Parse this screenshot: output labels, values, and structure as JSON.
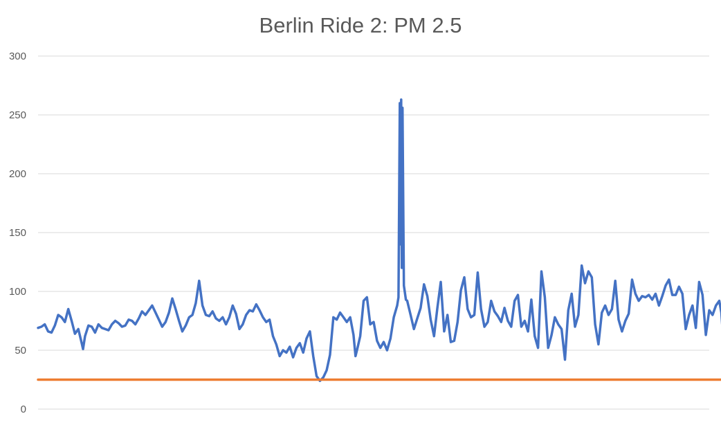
{
  "chart_data": {
    "type": "line",
    "title": "Berlin Ride 2: PM 2.5",
    "xlabel": "",
    "ylabel": "",
    "ylim": [
      0,
      300
    ],
    "y_ticks": [
      0,
      50,
      100,
      150,
      200,
      250,
      300
    ],
    "grid": true,
    "legend": "none",
    "x_count": 1000,
    "series": [
      {
        "color": "#4472c4",
        "keypoints": [
          [
            0,
            69
          ],
          [
            5,
            70
          ],
          [
            10,
            72
          ],
          [
            15,
            66
          ],
          [
            20,
            65
          ],
          [
            25,
            71
          ],
          [
            30,
            80
          ],
          [
            35,
            78
          ],
          [
            40,
            74
          ],
          [
            45,
            85
          ],
          [
            50,
            75
          ],
          [
            55,
            64
          ],
          [
            60,
            68
          ],
          [
            65,
            56
          ],
          [
            67,
            51
          ],
          [
            70,
            62
          ],
          [
            75,
            71
          ],
          [
            80,
            70
          ],
          [
            85,
            65
          ],
          [
            90,
            72
          ],
          [
            95,
            69
          ],
          [
            100,
            68
          ],
          [
            105,
            67
          ],
          [
            110,
            72
          ],
          [
            115,
            75
          ],
          [
            120,
            73
          ],
          [
            125,
            70
          ],
          [
            130,
            71
          ],
          [
            135,
            76
          ],
          [
            140,
            75
          ],
          [
            145,
            72
          ],
          [
            150,
            77
          ],
          [
            155,
            83
          ],
          [
            160,
            80
          ],
          [
            165,
            84
          ],
          [
            170,
            88
          ],
          [
            175,
            82
          ],
          [
            180,
            76
          ],
          [
            185,
            70
          ],
          [
            190,
            74
          ],
          [
            195,
            82
          ],
          [
            200,
            94
          ],
          [
            205,
            85
          ],
          [
            210,
            75
          ],
          [
            215,
            66
          ],
          [
            220,
            71
          ],
          [
            225,
            78
          ],
          [
            230,
            80
          ],
          [
            235,
            90
          ],
          [
            240,
            109
          ],
          [
            245,
            88
          ],
          [
            250,
            80
          ],
          [
            255,
            79
          ],
          [
            260,
            83
          ],
          [
            265,
            77
          ],
          [
            270,
            75
          ],
          [
            275,
            78
          ],
          [
            280,
            72
          ],
          [
            285,
            78
          ],
          [
            290,
            88
          ],
          [
            295,
            81
          ],
          [
            300,
            68
          ],
          [
            305,
            72
          ],
          [
            310,
            80
          ],
          [
            315,
            84
          ],
          [
            320,
            83
          ],
          [
            325,
            89
          ],
          [
            330,
            84
          ],
          [
            335,
            78
          ],
          [
            340,
            74
          ],
          [
            345,
            76
          ],
          [
            350,
            62
          ],
          [
            355,
            55
          ],
          [
            360,
            45
          ],
          [
            365,
            50
          ],
          [
            370,
            48
          ],
          [
            375,
            53
          ],
          [
            380,
            44
          ],
          [
            385,
            52
          ],
          [
            390,
            56
          ],
          [
            395,
            48
          ],
          [
            400,
            60
          ],
          [
            405,
            66
          ],
          [
            410,
            45
          ],
          [
            415,
            28
          ],
          [
            420,
            24
          ],
          [
            425,
            27
          ],
          [
            430,
            33
          ],
          [
            435,
            46
          ],
          [
            440,
            78
          ],
          [
            445,
            76
          ],
          [
            450,
            82
          ],
          [
            455,
            78
          ],
          [
            460,
            74
          ],
          [
            465,
            78
          ],
          [
            470,
            63
          ],
          [
            473,
            45
          ],
          [
            476,
            52
          ],
          [
            480,
            62
          ],
          [
            485,
            92
          ],
          [
            490,
            95
          ],
          [
            495,
            72
          ],
          [
            500,
            74
          ],
          [
            505,
            58
          ],
          [
            510,
            52
          ],
          [
            515,
            57
          ],
          [
            520,
            50
          ],
          [
            525,
            60
          ],
          [
            530,
            78
          ],
          [
            535,
            88
          ],
          [
            537,
            95
          ],
          [
            539,
            260
          ],
          [
            540,
            140
          ],
          [
            541,
            263
          ],
          [
            542,
            120
          ],
          [
            543,
            256
          ],
          [
            545,
            105
          ],
          [
            548,
            93
          ],
          [
            550,
            92
          ],
          [
            555,
            80
          ],
          [
            560,
            68
          ],
          [
            565,
            77
          ],
          [
            570,
            86
          ],
          [
            575,
            106
          ],
          [
            580,
            96
          ],
          [
            585,
            76
          ],
          [
            590,
            62
          ],
          [
            595,
            86
          ],
          [
            600,
            108
          ],
          [
            605,
            66
          ],
          [
            610,
            80
          ],
          [
            615,
            57
          ],
          [
            620,
            58
          ],
          [
            625,
            74
          ],
          [
            630,
            101
          ],
          [
            635,
            112
          ],
          [
            640,
            85
          ],
          [
            645,
            78
          ],
          [
            650,
            80
          ],
          [
            655,
            116
          ],
          [
            660,
            85
          ],
          [
            665,
            70
          ],
          [
            670,
            74
          ],
          [
            675,
            92
          ],
          [
            680,
            83
          ],
          [
            685,
            79
          ],
          [
            690,
            74
          ],
          [
            695,
            86
          ],
          [
            700,
            75
          ],
          [
            705,
            70
          ],
          [
            710,
            92
          ],
          [
            715,
            97
          ],
          [
            720,
            70
          ],
          [
            725,
            75
          ],
          [
            730,
            66
          ],
          [
            735,
            93
          ],
          [
            740,
            62
          ],
          [
            745,
            52
          ],
          [
            750,
            117
          ],
          [
            755,
            95
          ],
          [
            760,
            52
          ],
          [
            765,
            63
          ],
          [
            770,
            78
          ],
          [
            775,
            72
          ],
          [
            780,
            68
          ],
          [
            785,
            42
          ],
          [
            790,
            84
          ],
          [
            795,
            98
          ],
          [
            800,
            70
          ],
          [
            805,
            80
          ],
          [
            810,
            122
          ],
          [
            815,
            107
          ],
          [
            820,
            117
          ],
          [
            825,
            112
          ],
          [
            830,
            72
          ],
          [
            835,
            55
          ],
          [
            840,
            82
          ],
          [
            845,
            88
          ],
          [
            850,
            80
          ],
          [
            855,
            85
          ],
          [
            860,
            109
          ],
          [
            865,
            76
          ],
          [
            870,
            66
          ],
          [
            875,
            75
          ],
          [
            880,
            81
          ],
          [
            885,
            110
          ],
          [
            890,
            98
          ],
          [
            895,
            92
          ],
          [
            900,
            96
          ],
          [
            905,
            95
          ],
          [
            910,
            97
          ],
          [
            915,
            93
          ],
          [
            920,
            98
          ],
          [
            925,
            88
          ],
          [
            930,
            96
          ],
          [
            935,
            105
          ],
          [
            940,
            110
          ],
          [
            945,
            97
          ],
          [
            950,
            97
          ],
          [
            955,
            104
          ],
          [
            960,
            98
          ],
          [
            965,
            68
          ],
          [
            970,
            80
          ],
          [
            975,
            88
          ],
          [
            980,
            69
          ],
          [
            985,
            108
          ],
          [
            990,
            97
          ],
          [
            995,
            63
          ],
          [
            1000,
            84
          ],
          [
            1005,
            80
          ],
          [
            1010,
            88
          ],
          [
            1015,
            92
          ],
          [
            1018,
            82
          ],
          [
            1020,
            66
          ],
          [
            1023,
            63
          ]
        ]
      },
      {
        "color": "#ed7d31",
        "keypoints": [
          [
            0,
            25
          ],
          [
            1023,
            25
          ]
        ]
      }
    ]
  }
}
